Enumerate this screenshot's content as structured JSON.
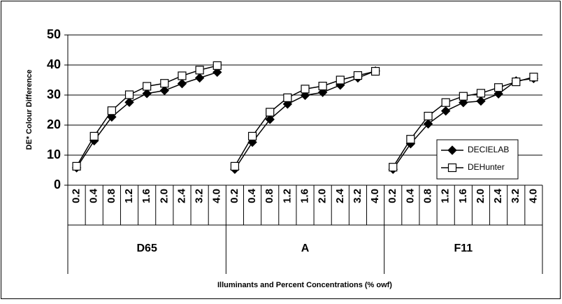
{
  "chart_data": {
    "type": "line",
    "y_label": "DE* Colour Difference",
    "x_label": "Illuminants and Percent Concentrations (% owf)",
    "groups": [
      "D65",
      "A",
      "F11"
    ],
    "categories": [
      "0.2",
      "0.4",
      "0.8",
      "1.2",
      "1.6",
      "2.0",
      "2.4",
      "3.2",
      "4.0",
      "0.2",
      "0.4",
      "0.8",
      "1.2",
      "1.6",
      "2.0",
      "2.4",
      "3.2",
      "4.0",
      "0.2",
      "0.4",
      "0.8",
      "1.2",
      "1.6",
      "2.0",
      "2.4",
      "3.2",
      "4.0"
    ],
    "series": [
      {
        "name": "DECIELAB",
        "color": "#000000",
        "marker": "diamond",
        "values": [
          5.8,
          14.8,
          22.7,
          27.6,
          30.5,
          31.5,
          33.8,
          35.7,
          37.6,
          5.3,
          14.3,
          21.9,
          27.0,
          29.9,
          30.9,
          33.3,
          35.7,
          38.0,
          5.3,
          13.8,
          20.4,
          24.7,
          27.5,
          28.0,
          30.4,
          34.7,
          35.5
        ]
      },
      {
        "name": "DEHunter",
        "color": "#000000",
        "marker": "square",
        "values": [
          6.3,
          16.3,
          24.8,
          30.1,
          32.9,
          33.9,
          36.4,
          38.3,
          39.8,
          6.3,
          16.3,
          24.3,
          29.1,
          32.0,
          33.0,
          35.0,
          36.5,
          37.9,
          6.0,
          15.3,
          23.0,
          27.5,
          29.6,
          30.6,
          32.5,
          34.4,
          36.0
        ]
      }
    ],
    "ylim": [
      0,
      50
    ],
    "yticks": [
      0,
      10,
      20,
      30,
      40,
      50
    ],
    "grid": true,
    "legend": "right"
  }
}
